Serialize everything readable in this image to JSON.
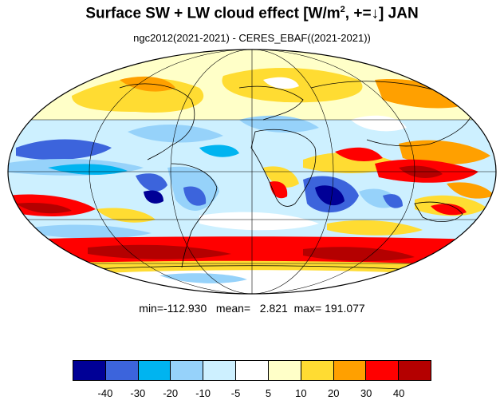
{
  "title": {
    "prefix": "Surface SW + LW cloud effect [W/m",
    "sup": "2",
    "suffix": ", +=↓]  JAN"
  },
  "subtitle": "ngc2012(2021-2021) - CERES_EBAF((2021-2021))",
  "stats": {
    "text": "min=-112.930   mean=   2.821  max= 191.077",
    "min": -112.93,
    "mean": 2.821,
    "max": 191.077
  },
  "colorbar": {
    "colors": [
      "#000096",
      "#3c64dc",
      "#00b4f0",
      "#96d2fa",
      "#cdf0ff",
      "#ffffff",
      "#ffffc8",
      "#ffdc32",
      "#ffa000",
      "#ff0000",
      "#b40000"
    ],
    "tick_labels": [
      "-40",
      "-30",
      "-20",
      "-10",
      "-5",
      "5",
      "10",
      "20",
      "30",
      "40"
    ]
  },
  "map_fields": {
    "projection": "Mollweide",
    "variable": "Surface SW + LW cloud effect",
    "units": "W/m2",
    "month": "JAN"
  }
}
